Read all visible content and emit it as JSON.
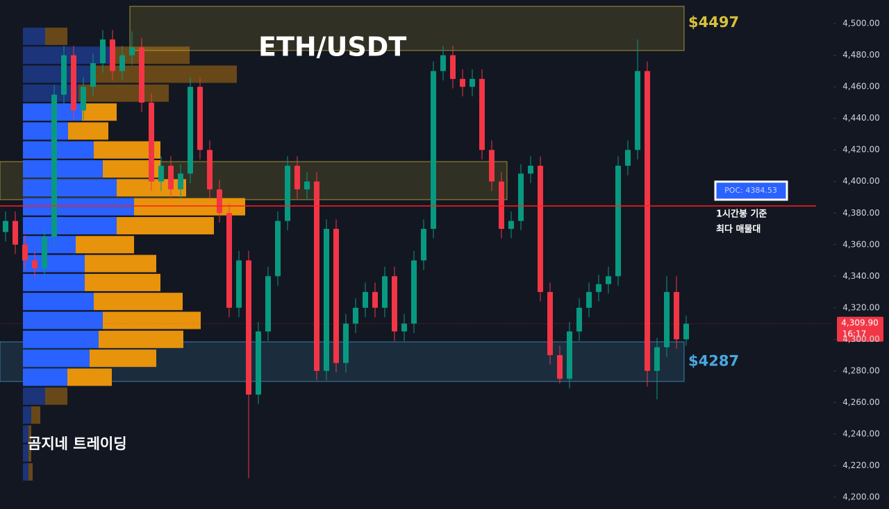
{
  "chart_data": {
    "type": "candlestick",
    "title": "ETH/USDT",
    "watermark": "곰지네 트레이딩",
    "ylim": [
      4192.5,
      4515
    ],
    "yticks": [
      {
        "value": 4200,
        "label": "4,200.00"
      },
      {
        "value": 4220,
        "label": "4,220.00"
      },
      {
        "value": 4240,
        "label": "4,240.00"
      },
      {
        "value": 4260,
        "label": "4,260.00"
      },
      {
        "value": 4280,
        "label": "4,280.00"
      },
      {
        "value": 4300,
        "label": "4,300.00"
      },
      {
        "value": 4320,
        "label": "4,320.00"
      },
      {
        "value": 4340,
        "label": "4,340.00"
      },
      {
        "value": 4360,
        "label": "4,360.00"
      },
      {
        "value": 4380,
        "label": "4,380.00"
      },
      {
        "value": 4400,
        "label": "4,400.00"
      },
      {
        "value": 4420,
        "label": "4,420.00"
      },
      {
        "value": 4440,
        "label": "4,440.00"
      },
      {
        "value": 4460,
        "label": "4,460.00"
      },
      {
        "value": 4480,
        "label": "4,480.00"
      },
      {
        "value": 4500,
        "label": "4,500.00"
      }
    ],
    "up_color": "#089981",
    "down_color": "#f23645",
    "ohlc": [
      [
        4368,
        4381,
        4362,
        4375
      ],
      [
        4375,
        4381,
        4354,
        4360
      ],
      [
        4360,
        4366,
        4344,
        4350
      ],
      [
        4350,
        4356,
        4339,
        4345
      ],
      [
        4345,
        4371,
        4339,
        4365
      ],
      [
        4365,
        4461,
        4359,
        4455
      ],
      [
        4455,
        4486,
        4449,
        4480
      ],
      [
        4480,
        4486,
        4439,
        4445
      ],
      [
        4445,
        4466,
        4439,
        4460
      ],
      [
        4460,
        4481,
        4454,
        4475
      ],
      [
        4475,
        4496,
        4469,
        4490
      ],
      [
        4490,
        4496,
        4464,
        4470
      ],
      [
        4470,
        4486,
        4464,
        4480
      ],
      [
        4480,
        4495,
        4474,
        4485
      ],
      [
        4485,
        4491,
        4444,
        4450
      ],
      [
        4450,
        4456,
        4394,
        4400
      ],
      [
        4400,
        4416,
        4394,
        4410
      ],
      [
        4410,
        4416,
        4389,
        4395
      ],
      [
        4395,
        4411,
        4389,
        4405
      ],
      [
        4405,
        4466,
        4399,
        4460
      ],
      [
        4460,
        4466,
        4414,
        4420
      ],
      [
        4420,
        4426,
        4389,
        4395
      ],
      [
        4395,
        4401,
        4374,
        4380
      ],
      [
        4380,
        4386,
        4314,
        4320
      ],
      [
        4320,
        4356,
        4314,
        4350
      ],
      [
        4350,
        4356,
        4212,
        4265
      ],
      [
        4265,
        4311,
        4259,
        4305
      ],
      [
        4305,
        4346,
        4299,
        4340
      ],
      [
        4340,
        4381,
        4334,
        4375
      ],
      [
        4375,
        4416,
        4369,
        4410
      ],
      [
        4410,
        4416,
        4389,
        4395
      ],
      [
        4395,
        4406,
        4389,
        4400
      ],
      [
        4400,
        4406,
        4274,
        4280
      ],
      [
        4280,
        4376,
        4274,
        4370
      ],
      [
        4370,
        4376,
        4279,
        4285
      ],
      [
        4285,
        4316,
        4279,
        4310
      ],
      [
        4310,
        4326,
        4304,
        4320
      ],
      [
        4320,
        4336,
        4314,
        4330
      ],
      [
        4330,
        4336,
        4314,
        4320
      ],
      [
        4320,
        4346,
        4314,
        4340
      ],
      [
        4340,
        4346,
        4299,
        4305
      ],
      [
        4305,
        4316,
        4299,
        4310
      ],
      [
        4310,
        4356,
        4304,
        4350
      ],
      [
        4350,
        4376,
        4344,
        4370
      ],
      [
        4370,
        4476,
        4364,
        4470
      ],
      [
        4470,
        4486,
        4464,
        4480
      ],
      [
        4480,
        4486,
        4459,
        4465
      ],
      [
        4465,
        4471,
        4454,
        4460
      ],
      [
        4460,
        4471,
        4454,
        4465
      ],
      [
        4465,
        4471,
        4414,
        4420
      ],
      [
        4420,
        4426,
        4394,
        4400
      ],
      [
        4400,
        4406,
        4364,
        4370
      ],
      [
        4370,
        4381,
        4364,
        4375
      ],
      [
        4375,
        4411,
        4369,
        4405
      ],
      [
        4405,
        4416,
        4399,
        4410
      ],
      [
        4410,
        4416,
        4324,
        4330
      ],
      [
        4330,
        4336,
        4284,
        4290
      ],
      [
        4290,
        4296,
        4272,
        4275
      ],
      [
        4275,
        4311,
        4269,
        4305
      ],
      [
        4305,
        4326,
        4299,
        4320
      ],
      [
        4320,
        4336,
        4314,
        4330
      ],
      [
        4330,
        4341,
        4324,
        4335
      ],
      [
        4335,
        4346,
        4329,
        4340
      ],
      [
        4340,
        4416,
        4334,
        4410
      ],
      [
        4410,
        4426,
        4404,
        4420
      ],
      [
        4420,
        4490,
        4414,
        4470
      ],
      [
        4470,
        4476,
        4270,
        4280
      ],
      [
        4280,
        4301,
        4262,
        4295
      ],
      [
        4295,
        4340,
        4289,
        4330
      ],
      [
        4330,
        4340,
        4294,
        4300
      ],
      [
        4300,
        4315,
        4296,
        4309.9
      ]
    ],
    "profile": {
      "levels": [
        4492,
        4480,
        4468,
        4456,
        4444,
        4432,
        4420,
        4408,
        4396,
        4384,
        4372,
        4360,
        4348,
        4336,
        4324,
        4312,
        4300,
        4288,
        4276,
        4264,
        4252,
        4240,
        4228,
        4216
      ],
      "buy": [
        32,
        130,
        100,
        80,
        85,
        65,
        102,
        115,
        135,
        160,
        135,
        76,
        89,
        89,
        102,
        115,
        109,
        96,
        64,
        32,
        12,
        8,
        8,
        8
      ],
      "sell": [
        32,
        110,
        208,
        130,
        50,
        58,
        96,
        83,
        100,
        160,
        140,
        84,
        103,
        109,
        128,
        141,
        122,
        96,
        64,
        32,
        13,
        4,
        4,
        6
      ],
      "buy_color": "#2962ff",
      "sell_color": "#e8930c",
      "value_area_rows": [
        4,
        18
      ]
    },
    "zones": [
      {
        "top": 4511,
        "bottom": 4483,
        "label": "$4497",
        "color": "#d8c13a"
      },
      {
        "top": 4412.6,
        "bottom": 4388.5,
        "color": "#d8c13a"
      },
      {
        "top": 4298.4,
        "bottom": 4273.3,
        "label": "$4287",
        "color": "#4aa8e0"
      }
    ],
    "poc": {
      "value": 4384.53,
      "label": "POC: 4384.53",
      "note": [
        "1시간봉 기준",
        "최다 매물대"
      ],
      "color": "#ff1e1e"
    },
    "price": {
      "value": 4309.9,
      "label": "4,309.90",
      "countdown": "16:17"
    }
  }
}
